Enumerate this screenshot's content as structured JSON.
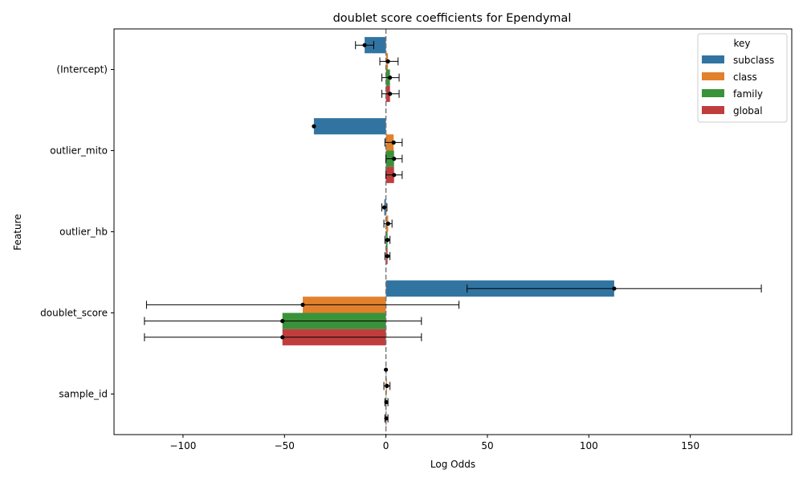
{
  "chart_data": {
    "type": "bar",
    "orientation": "horizontal",
    "title": "doublet score coefficients for Ependymal",
    "xlabel": "Log Odds",
    "ylabel": "Feature",
    "xlim": [
      -134,
      200
    ],
    "xticks": [
      -100,
      -50,
      0,
      50,
      100,
      150
    ],
    "xtick_labels": [
      "−100",
      "−50",
      "0",
      "50",
      "100",
      "150"
    ],
    "reference_line_x": 0,
    "categories": [
      "(Intercept)",
      "outlier_mito",
      "outlier_hb",
      "doublet_score",
      "sample_id"
    ],
    "legend": {
      "title": "key",
      "placement": "top-right"
    },
    "series": [
      {
        "name": "subclass",
        "color": "#3274a1",
        "values": [
          -10.5,
          -35.5,
          -0.8,
          112.5,
          0.0
        ],
        "ci_low": [
          -15,
          null,
          -2,
          40,
          null
        ],
        "ci_high": [
          -6,
          null,
          0.5,
          185,
          null
        ]
      },
      {
        "name": "class",
        "color": "#e1812c",
        "values": [
          1.0,
          3.8,
          1.1,
          -41.0,
          0.5
        ],
        "ci_low": [
          -3,
          -0.5,
          -1,
          -118,
          -1
        ],
        "ci_high": [
          6,
          8,
          3,
          36,
          2
        ]
      },
      {
        "name": "family",
        "color": "#3a923a",
        "values": [
          2.0,
          4.0,
          0.8,
          -51.0,
          0.2
        ],
        "ci_low": [
          -2,
          0,
          -0.5,
          -119,
          -0.5
        ],
        "ci_high": [
          6.5,
          8,
          2,
          17.5,
          1
        ]
      },
      {
        "name": "global",
        "color": "#c03d3e",
        "values": [
          2.0,
          4.0,
          0.8,
          -51.0,
          0.2
        ],
        "ci_low": [
          -2,
          0,
          -0.5,
          -119,
          -0.5
        ],
        "ci_high": [
          6.5,
          8,
          2,
          17.5,
          1
        ]
      }
    ]
  }
}
